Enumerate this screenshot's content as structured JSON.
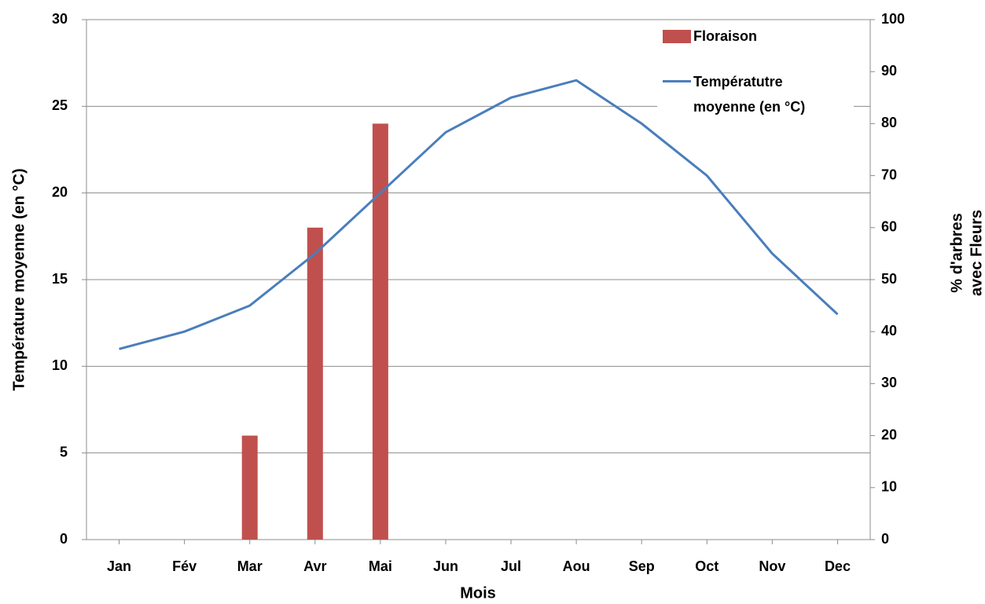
{
  "chart_data": {
    "type": "bar-line",
    "xlabel": "Mois",
    "ylabel": "Température moyenne (en °C)",
    "y2label": [
      "% d'arbres",
      "avec Fleurs"
    ],
    "categories": [
      "Jan",
      "Fév",
      "Mar",
      "Avr",
      "Mai",
      "Jun",
      "Jul",
      "Aou",
      "Sep",
      "Oct",
      "Nov",
      "Dec"
    ],
    "series": [
      {
        "name": "Floraison",
        "type": "bar",
        "axis": "y2",
        "color": "#c0504d",
        "values": [
          0,
          0,
          20,
          60,
          80,
          0,
          0,
          0,
          0,
          0,
          0,
          0
        ]
      },
      {
        "name": "Températutre moyenne (en °C)",
        "type": "line",
        "axis": "y",
        "color": "#4a7ebb",
        "values": [
          11,
          12,
          13.5,
          16.5,
          20,
          23.5,
          25.5,
          26.5,
          24,
          21,
          16.5,
          13
        ]
      }
    ],
    "ylim": [
      0,
      30
    ],
    "yticks": [
      0,
      5,
      10,
      15,
      20,
      25,
      30
    ],
    "y2lim": [
      0,
      100
    ],
    "y2ticks": [
      0,
      10,
      20,
      30,
      40,
      50,
      60,
      70,
      80,
      90,
      100
    ],
    "grid": true,
    "legend": "upper right"
  }
}
